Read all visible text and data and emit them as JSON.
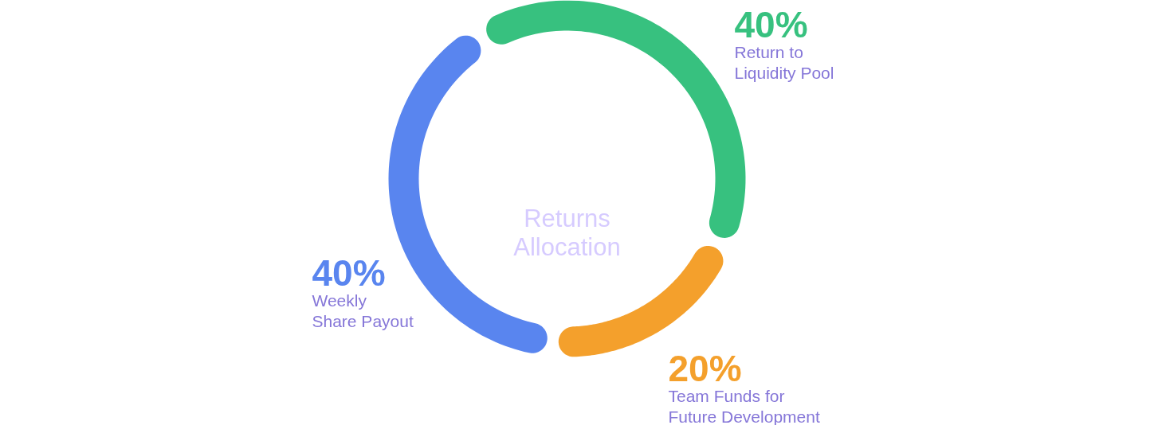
{
  "chart_data": {
    "type": "donut",
    "title": "Returns Allocation",
    "categories": [
      "Return to Liquidity Pool",
      "Team Funds for Future Development",
      "Weekly Share Payout"
    ],
    "values": [
      40,
      20,
      40
    ],
    "colors": [
      "#37c17f",
      "#f4a02c",
      "#5985ef"
    ],
    "value_labels": [
      "40%",
      "20%",
      "40%"
    ]
  }
}
